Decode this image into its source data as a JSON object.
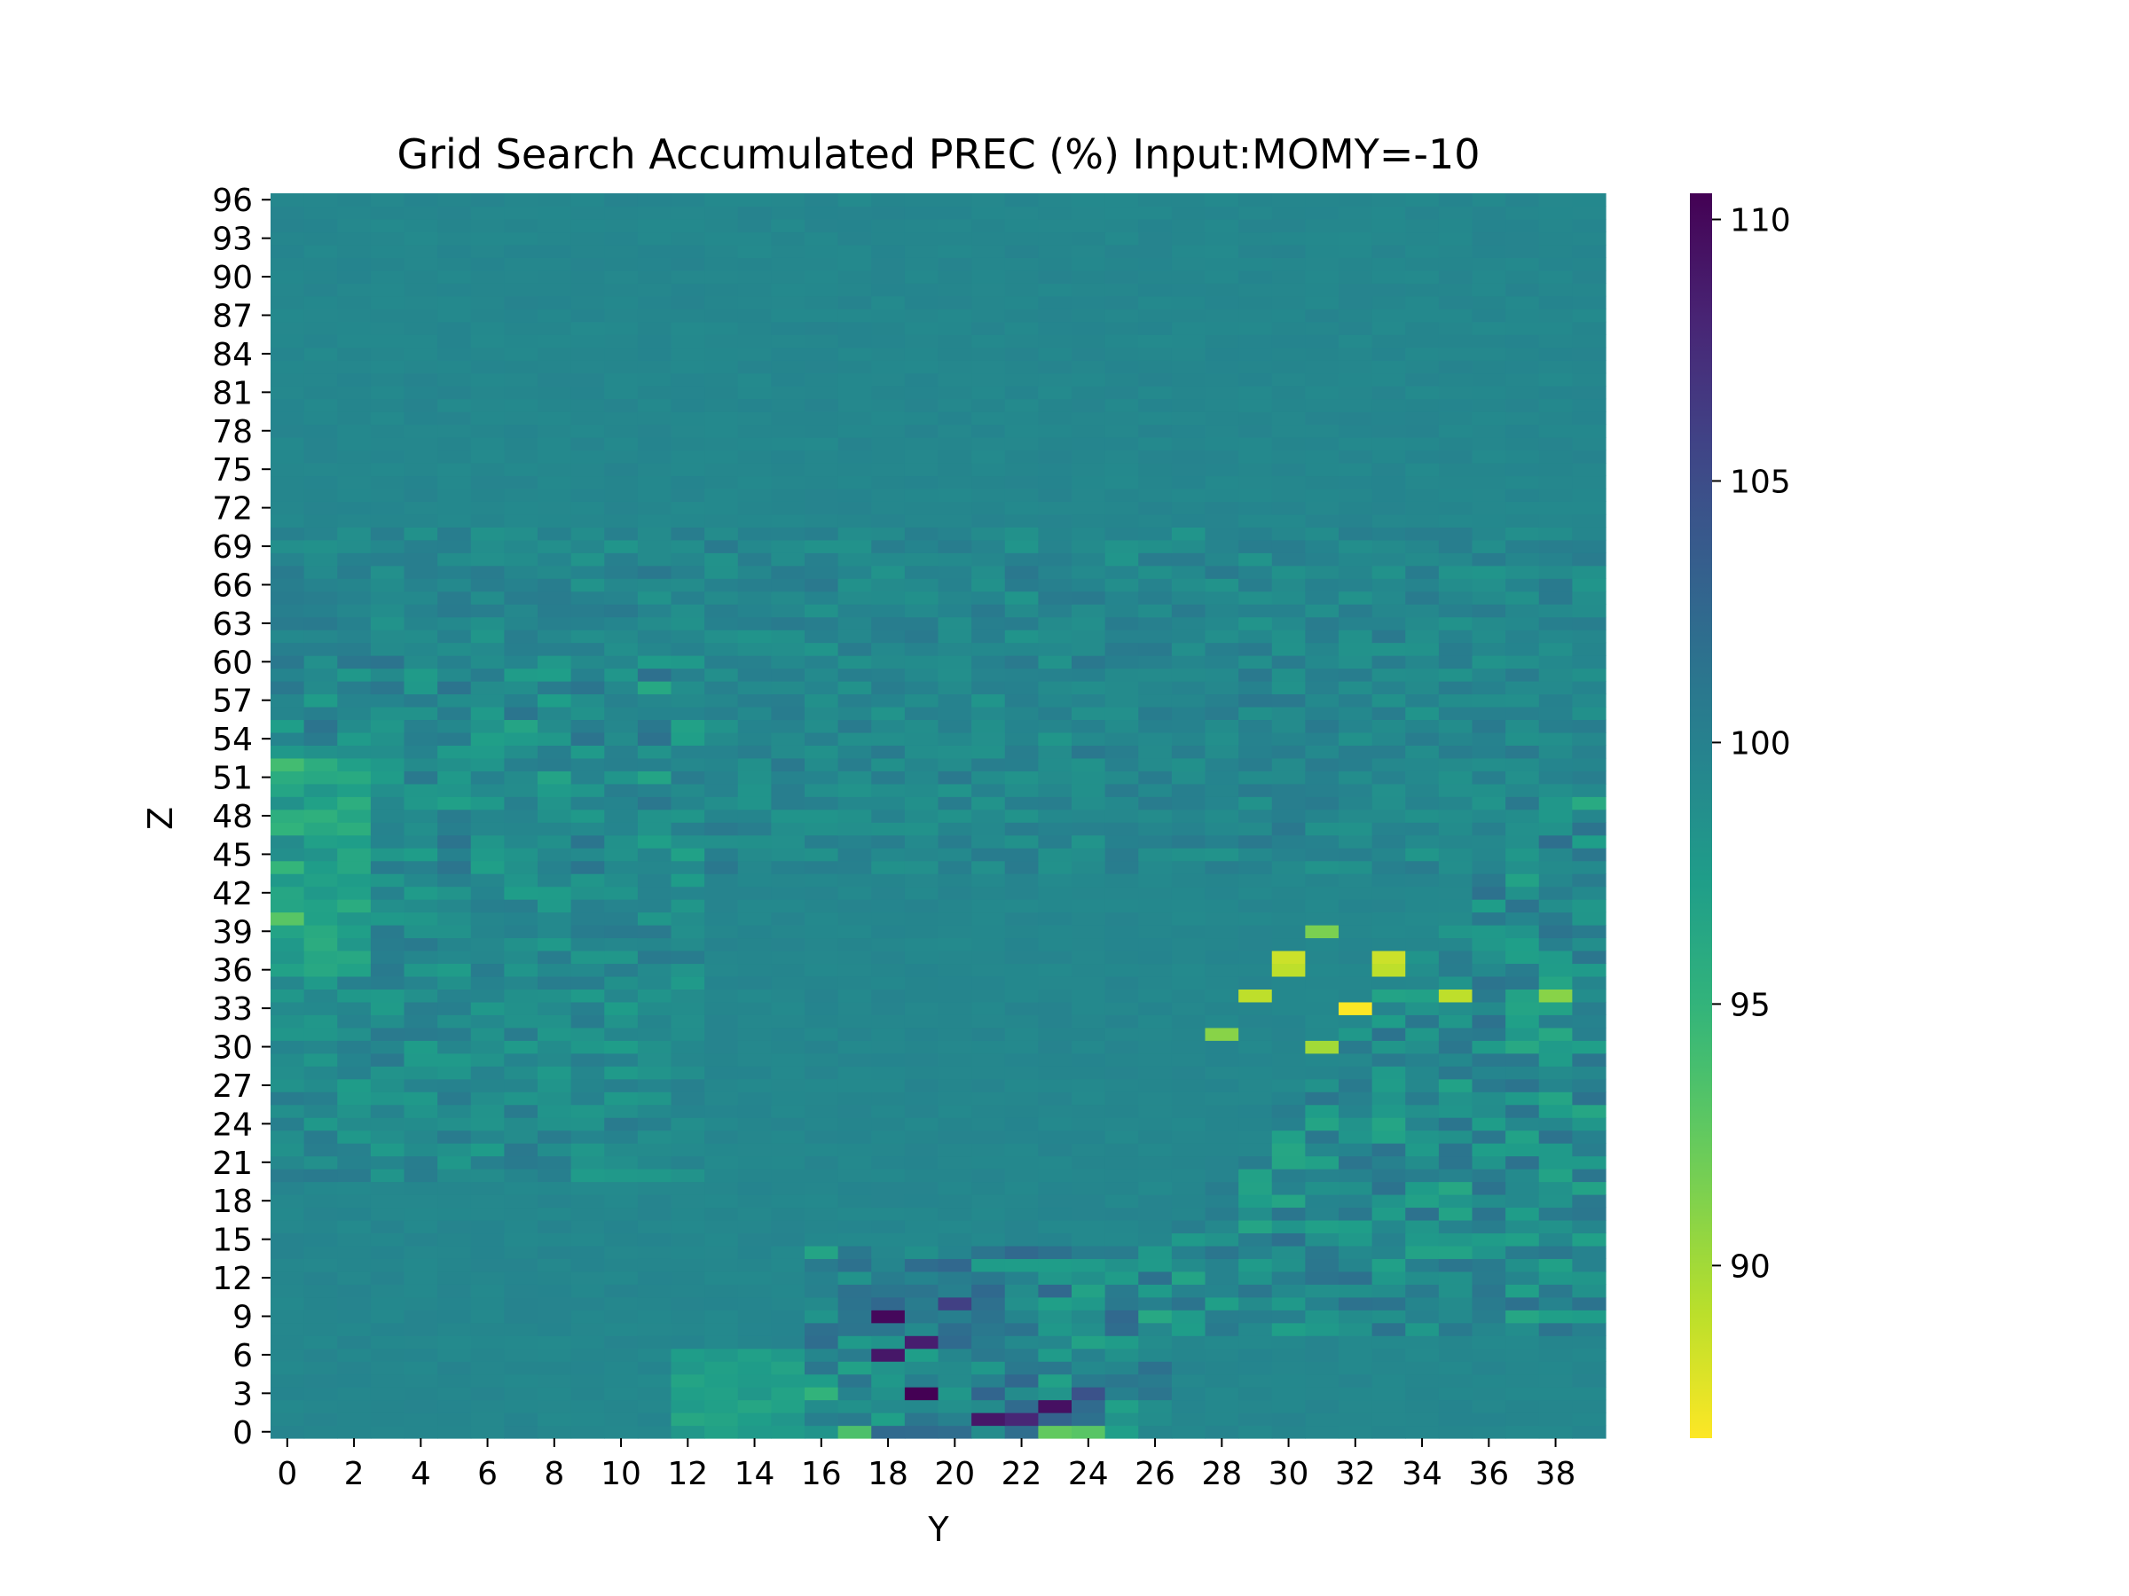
{
  "chart_data": {
    "type": "heatmap",
    "title": "Grid Search Accumulated PREC (%) Input:MOMY=-10",
    "xlabel": "Y",
    "ylabel": "Z",
    "x_range": [
      0,
      39
    ],
    "y_range": [
      0,
      96
    ],
    "x_tick_labels": [
      "0",
      "2",
      "4",
      "6",
      "8",
      "10",
      "12",
      "14",
      "16",
      "18",
      "20",
      "22",
      "24",
      "26",
      "28",
      "30",
      "32",
      "34",
      "36",
      "38"
    ],
    "y_tick_labels": [
      "0",
      "3",
      "6",
      "9",
      "12",
      "15",
      "18",
      "21",
      "24",
      "27",
      "30",
      "33",
      "36",
      "39",
      "42",
      "45",
      "48",
      "51",
      "54",
      "57",
      "60",
      "63",
      "66",
      "69",
      "72",
      "75",
      "78",
      "81",
      "84",
      "87",
      "90",
      "93",
      "96"
    ],
    "colorbar": {
      "colormap": "viridis (reversed)",
      "vmin": 86.7,
      "vmax": 110.5,
      "tick_values": [
        90,
        95,
        100,
        105,
        110
      ],
      "tick_labels": [
        "90",
        "95",
        "100",
        "105",
        "110"
      ]
    },
    "notable_cells": [
      {
        "y": 18,
        "z": 9,
        "value": 110.0
      },
      {
        "y": 19,
        "z": 7,
        "value": 108.5
      },
      {
        "y": 18,
        "z": 6,
        "value": 109.0
      },
      {
        "y": 19,
        "z": 3,
        "value": 110.5
      },
      {
        "y": 21,
        "z": 1,
        "value": 109.0
      },
      {
        "y": 22,
        "z": 1,
        "value": 108.0
      },
      {
        "y": 23,
        "z": 2,
        "value": 109.5
      },
      {
        "y": 24,
        "z": 3,
        "value": 104.5
      },
      {
        "y": 20,
        "z": 10,
        "value": 106.0
      },
      {
        "y": 32,
        "z": 33,
        "value": 86.7
      },
      {
        "y": 30,
        "z": 37,
        "value": 88.5
      },
      {
        "y": 30,
        "z": 36,
        "value": 89.0
      },
      {
        "y": 33,
        "z": 37,
        "value": 88.5
      },
      {
        "y": 33,
        "z": 36,
        "value": 89.0
      },
      {
        "y": 29,
        "z": 34,
        "value": 89.0
      },
      {
        "y": 35,
        "z": 34,
        "value": 89.0
      },
      {
        "y": 31,
        "z": 30,
        "value": 90.0
      },
      {
        "y": 28,
        "z": 31,
        "value": 91.0
      },
      {
        "y": 38,
        "z": 34,
        "value": 91.0
      },
      {
        "y": 31,
        "z": 39,
        "value": 91.5
      },
      {
        "y": 0,
        "z": 40,
        "value": 93.0
      },
      {
        "y": 17,
        "z": 0,
        "value": 93.5
      },
      {
        "y": 23,
        "z": 0,
        "value": 92.5
      },
      {
        "y": 24,
        "z": 0,
        "value": 93.0
      }
    ]
  }
}
